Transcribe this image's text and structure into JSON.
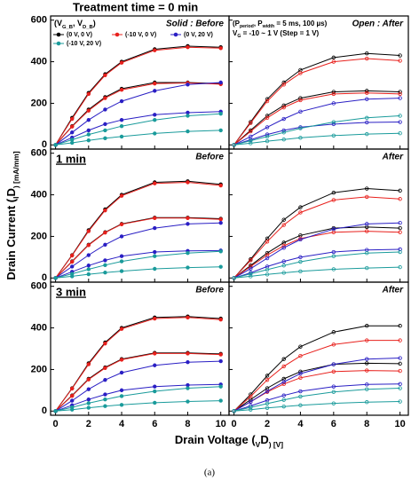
{
  "figure": {
    "title": "Treatment time = 0 min",
    "x_label": [
      "Drain Voltage (",
      "V",
      "D",
      ") [V]"
    ],
    "y_label": [
      "Drain Current (",
      "I",
      "D",
      ") [mA/mm]"
    ],
    "caption": "(a)"
  },
  "chart_data": [
    {
      "type": "line",
      "x": [
        0,
        1,
        2,
        3,
        4,
        6,
        8,
        10
      ],
      "xlim": [
        -0.3,
        10.5
      ],
      "xticks": [
        0,
        2,
        4,
        6,
        8,
        10
      ],
      "ylim": [
        -20,
        620
      ],
      "yticks": [
        0,
        200,
        400,
        600
      ],
      "marker": "filled",
      "panel_label": "Solid : Before",
      "panel_label_color": "#1e8fa8",
      "legend_title": [
        "(V",
        "G_B",
        ", V",
        "D_B",
        ")"
      ],
      "series": [
        {
          "name": "(0 V, 0 V)",
          "color": "#000000",
          "curves": [
            [
              0,
              130,
              250,
              340,
              400,
              460,
              475,
              470
            ],
            [
              0,
              90,
              170,
              230,
              270,
              300,
              300,
              295
            ]
          ]
        },
        {
          "name": "(-10 V, 0 V)",
          "color": "#e8201c",
          "curves": [
            [
              0,
              125,
              245,
              335,
              395,
              455,
              470,
              465
            ],
            [
              0,
              88,
              165,
              225,
              265,
              295,
              298,
              292
            ]
          ]
        },
        {
          "name": "(0 V, 20 V)",
          "color": "#2a1fc4",
          "curves": [
            [
              0,
              60,
              120,
              170,
              210,
              260,
              290,
              300
            ],
            [
              0,
              35,
              70,
              100,
              120,
              145,
              155,
              160
            ]
          ]
        },
        {
          "name": "(-10 V, 20 V)",
          "color": "#1a9b9b",
          "curves": [
            [
              0,
              25,
              50,
              70,
              90,
              120,
              140,
              150
            ],
            [
              0,
              10,
              22,
              32,
              40,
              55,
              65,
              70
            ]
          ]
        }
      ]
    },
    {
      "type": "line",
      "x": [
        0,
        1,
        2,
        3,
        4,
        6,
        8,
        10
      ],
      "xlim": [
        -0.3,
        10.5
      ],
      "xticks": [
        0,
        2,
        4,
        6,
        8,
        10
      ],
      "ylim": [
        -20,
        620
      ],
      "yticks": [
        0,
        200,
        400,
        600
      ],
      "marker": "open",
      "panel_label": "Open : After",
      "panel_label_color": "#e84a2a",
      "annotations": [
        [
          "(P",
          "period",
          ", P",
          "width",
          " = 5 ms, 100 µs)"
        ],
        [
          "V",
          "G",
          " = -10 ~ 1 V (Step = 1 V)"
        ]
      ],
      "series": [
        {
          "color": "#000000",
          "curves": [
            [
              0,
              110,
              220,
              300,
              360,
              420,
              440,
              430
            ],
            [
              0,
              70,
              140,
              190,
              225,
              255,
              260,
              255
            ]
          ]
        },
        {
          "color": "#e8201c",
          "curves": [
            [
              0,
              105,
              210,
              290,
              345,
              400,
              415,
              405
            ],
            [
              0,
              65,
              130,
              180,
              215,
              245,
              250,
              245
            ]
          ]
        },
        {
          "color": "#2a1fc4",
          "curves": [
            [
              0,
              40,
              85,
              125,
              160,
              200,
              220,
              225
            ],
            [
              0,
              25,
              50,
              70,
              85,
              100,
              108,
              110
            ]
          ]
        },
        {
          "color": "#1a9b9b",
          "curves": [
            [
              0,
              20,
              40,
              60,
              80,
              110,
              130,
              140
            ],
            [
              0,
              8,
              18,
              26,
              34,
              45,
              52,
              56
            ]
          ]
        }
      ]
    },
    {
      "type": "line",
      "x": [
        0,
        1,
        2,
        3,
        4,
        6,
        8,
        10
      ],
      "xlim": [
        -0.3,
        10.5
      ],
      "xticks": [
        0,
        2,
        4,
        6,
        8,
        10
      ],
      "ylim": [
        -20,
        620
      ],
      "yticks": [
        0,
        200,
        400,
        600
      ],
      "marker": "filled",
      "panel_label": "Before",
      "panel_label_color": "#1e8fa8",
      "time_label": "1 min",
      "time_label_color": "#1a1ab8",
      "series": [
        {
          "color": "#000000",
          "curves": [
            [
              0,
              110,
              230,
              330,
              400,
              460,
              465,
              450
            ],
            [
              0,
              80,
              160,
              220,
              260,
              290,
              290,
              285
            ]
          ]
        },
        {
          "color": "#e8201c",
          "curves": [
            [
              0,
              108,
              225,
              325,
              395,
              455,
              460,
              445
            ],
            [
              0,
              78,
              158,
              218,
              258,
              288,
              288,
              282
            ]
          ]
        },
        {
          "color": "#2a1fc4",
          "curves": [
            [
              0,
              55,
              110,
              160,
              200,
              240,
              260,
              265
            ],
            [
              0,
              30,
              60,
              85,
              105,
              125,
              130,
              132
            ]
          ]
        },
        {
          "color": "#1a9b9b",
          "curves": [
            [
              0,
              20,
              42,
              62,
              80,
              105,
              120,
              128
            ],
            [
              0,
              8,
              18,
              26,
              33,
              44,
              50,
              54
            ]
          ]
        }
      ]
    },
    {
      "type": "line",
      "x": [
        0,
        1,
        2,
        3,
        4,
        6,
        8,
        10
      ],
      "xlim": [
        -0.3,
        10.5
      ],
      "xticks": [
        0,
        2,
        4,
        6,
        8,
        10
      ],
      "ylim": [
        -20,
        620
      ],
      "yticks": [
        0,
        200,
        400,
        600
      ],
      "marker": "open",
      "panel_label": "After",
      "panel_label_color": "#e84a2a",
      "series": [
        {
          "color": "#000000",
          "curves": [
            [
              0,
              90,
              190,
              280,
              340,
              410,
              430,
              420
            ],
            [
              0,
              60,
              120,
              170,
              205,
              240,
              245,
              240
            ]
          ]
        },
        {
          "color": "#e8201c",
          "curves": [
            [
              0,
              85,
              175,
              255,
              315,
              375,
              390,
              380
            ],
            [
              0,
              55,
              110,
              155,
              190,
              220,
              225,
              220
            ]
          ]
        },
        {
          "color": "#2a1fc4",
          "curves": [
            [
              0,
              45,
              95,
              145,
              185,
              235,
              260,
              265
            ],
            [
              0,
              25,
              55,
              80,
              100,
              125,
              135,
              138
            ]
          ]
        },
        {
          "color": "#1a9b9b",
          "curves": [
            [
              0,
              20,
              40,
              60,
              78,
              105,
              120,
              125
            ],
            [
              0,
              8,
              17,
              25,
              32,
              42,
              48,
              52
            ]
          ]
        }
      ]
    },
    {
      "type": "line",
      "x": [
        0,
        1,
        2,
        3,
        4,
        6,
        8,
        10
      ],
      "xlim": [
        -0.3,
        10.5
      ],
      "xticks": [
        0,
        2,
        4,
        6,
        8,
        10
      ],
      "ylim": [
        -20,
        620
      ],
      "yticks": [
        0,
        200,
        400,
        600
      ],
      "marker": "filled",
      "panel_label": "Before",
      "panel_label_color": "#1e8fa8",
      "time_label": "3 min",
      "time_label_color": "#e8201c",
      "series": [
        {
          "color": "#000000",
          "curves": [
            [
              0,
              110,
              230,
              330,
              400,
              450,
              455,
              445
            ],
            [
              0,
              75,
              155,
              210,
              250,
              280,
              280,
              275
            ]
          ]
        },
        {
          "color": "#e8201c",
          "curves": [
            [
              0,
              108,
              225,
              325,
              395,
              445,
              450,
              440
            ],
            [
              0,
              73,
              152,
              207,
              247,
              277,
              277,
              272
            ]
          ]
        },
        {
          "color": "#2a1fc4",
          "curves": [
            [
              0,
              50,
              105,
              150,
              185,
              220,
              235,
              240
            ],
            [
              0,
              28,
              56,
              80,
              100,
              118,
              125,
              128
            ]
          ]
        },
        {
          "color": "#1a9b9b",
          "curves": [
            [
              0,
              18,
              38,
              56,
              72,
              95,
              110,
              118
            ],
            [
              0,
              7,
              16,
              24,
              30,
              40,
              46,
              50
            ]
          ]
        }
      ]
    },
    {
      "type": "line",
      "x": [
        0,
        1,
        2,
        3,
        4,
        6,
        8,
        10
      ],
      "xlim": [
        -0.3,
        10.5
      ],
      "xticks": [
        0,
        2,
        4,
        6,
        8,
        10
      ],
      "ylim": [
        -20,
        620
      ],
      "yticks": [
        0,
        200,
        400,
        600
      ],
      "marker": "open",
      "panel_label": "After",
      "panel_label_color": "#e84a2a",
      "series": [
        {
          "color": "#000000",
          "curves": [
            [
              0,
              80,
              170,
              250,
              310,
              380,
              410,
              410
            ],
            [
              0,
              55,
              110,
              155,
              190,
              225,
              230,
              228
            ]
          ]
        },
        {
          "color": "#e8201c",
          "curves": [
            [
              0,
              70,
              150,
              215,
              265,
              320,
              340,
              340
            ],
            [
              0,
              45,
              92,
              130,
              160,
              190,
              195,
              193
            ]
          ]
        },
        {
          "color": "#2a1fc4",
          "curves": [
            [
              0,
              45,
              95,
              140,
              180,
              225,
              250,
              255
            ],
            [
              0,
              25,
              52,
              75,
              95,
              118,
              128,
              130
            ]
          ]
        },
        {
          "color": "#1a9b9b",
          "curves": [
            [
              0,
              18,
              36,
              54,
              70,
              92,
              105,
              110
            ],
            [
              0,
              7,
              15,
              22,
              28,
              37,
              43,
              46
            ]
          ]
        }
      ]
    }
  ]
}
